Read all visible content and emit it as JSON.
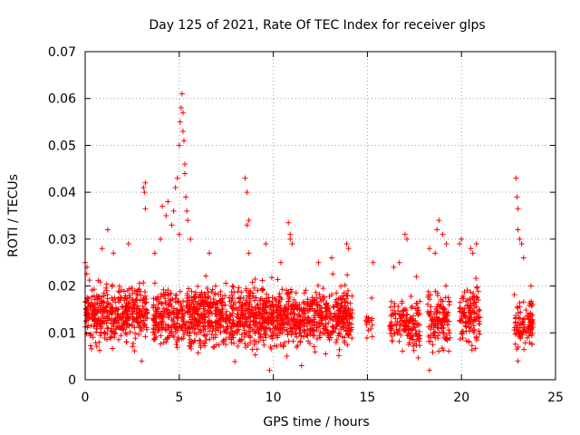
{
  "chart_data": {
    "type": "scatter",
    "title": "Day 125 of 2021, Rate Of TEC Index for receiver glps",
    "xlabel": "GPS time / hours",
    "ylabel": "ROTI / TECUs",
    "xlim": [
      0,
      25
    ],
    "ylim": [
      0,
      0.07
    ],
    "xticks": [
      "0",
      "5",
      "10",
      "15",
      "20",
      "25"
    ],
    "yticks": [
      "0",
      "0.01",
      "0.02",
      "0.03",
      "0.04",
      "0.05",
      "0.06",
      "0.07"
    ],
    "grid": true,
    "marker": "plus",
    "color": "#ff0000",
    "series": [
      {
        "segments": [
          {
            "x": [
              0.0,
              3.3
            ],
            "center": 0.014,
            "spread": 0.007,
            "density": 130
          },
          {
            "x": [
              3.6,
              14.2
            ],
            "center": 0.0135,
            "spread": 0.0075,
            "density": 130
          },
          {
            "x": [
              14.9,
              15.3
            ],
            "center": 0.0125,
            "spread": 0.006,
            "density": 40
          },
          {
            "x": [
              16.2,
              17.8
            ],
            "center": 0.012,
            "spread": 0.006,
            "density": 90
          },
          {
            "x": [
              18.2,
              19.4
            ],
            "center": 0.0125,
            "spread": 0.007,
            "density": 110
          },
          {
            "x": [
              19.9,
              21.0
            ],
            "center": 0.0135,
            "spread": 0.007,
            "density": 110
          },
          {
            "x": [
              22.8,
              23.8
            ],
            "center": 0.012,
            "spread": 0.006,
            "density": 110
          }
        ],
        "spikes": [
          {
            "x": 0.0,
            "y": 0.025
          },
          {
            "x": 0.1,
            "y": 0.024
          },
          {
            "x": 0.9,
            "y": 0.028
          },
          {
            "x": 1.2,
            "y": 0.032
          },
          {
            "x": 1.5,
            "y": 0.027
          },
          {
            "x": 2.3,
            "y": 0.029
          },
          {
            "x": 3.1,
            "y": 0.041
          },
          {
            "x": 3.15,
            "y": 0.04
          },
          {
            "x": 3.2,
            "y": 0.042
          },
          {
            "x": 3.2,
            "y": 0.0365
          },
          {
            "x": 3.0,
            "y": 0.004
          },
          {
            "x": 3.7,
            "y": 0.027
          },
          {
            "x": 4.0,
            "y": 0.03
          },
          {
            "x": 4.1,
            "y": 0.037
          },
          {
            "x": 4.3,
            "y": 0.035
          },
          {
            "x": 4.4,
            "y": 0.038
          },
          {
            "x": 4.6,
            "y": 0.033
          },
          {
            "x": 4.7,
            "y": 0.036
          },
          {
            "x": 4.8,
            "y": 0.041
          },
          {
            "x": 4.9,
            "y": 0.043
          },
          {
            "x": 5.0,
            "y": 0.05
          },
          {
            "x": 5.05,
            "y": 0.055
          },
          {
            "x": 5.1,
            "y": 0.058
          },
          {
            "x": 5.15,
            "y": 0.061
          },
          {
            "x": 5.2,
            "y": 0.057
          },
          {
            "x": 5.2,
            "y": 0.053
          },
          {
            "x": 5.25,
            "y": 0.051
          },
          {
            "x": 5.3,
            "y": 0.046
          },
          {
            "x": 5.3,
            "y": 0.044
          },
          {
            "x": 5.35,
            "y": 0.039
          },
          {
            "x": 5.4,
            "y": 0.036
          },
          {
            "x": 5.45,
            "y": 0.034
          },
          {
            "x": 5.0,
            "y": 0.031
          },
          {
            "x": 5.6,
            "y": 0.03
          },
          {
            "x": 6.6,
            "y": 0.027
          },
          {
            "x": 8.5,
            "y": 0.043
          },
          {
            "x": 8.6,
            "y": 0.04
          },
          {
            "x": 8.7,
            "y": 0.034
          },
          {
            "x": 8.6,
            "y": 0.033
          },
          {
            "x": 8.7,
            "y": 0.027
          },
          {
            "x": 9.6,
            "y": 0.029
          },
          {
            "x": 10.4,
            "y": 0.025
          },
          {
            "x": 10.8,
            "y": 0.0335
          },
          {
            "x": 10.9,
            "y": 0.031
          },
          {
            "x": 10.9,
            "y": 0.03
          },
          {
            "x": 11.0,
            "y": 0.029
          },
          {
            "x": 12.4,
            "y": 0.025
          },
          {
            "x": 13.1,
            "y": 0.026
          },
          {
            "x": 13.9,
            "y": 0.029
          },
          {
            "x": 14.0,
            "y": 0.028
          },
          {
            "x": 9.8,
            "y": 0.002
          },
          {
            "x": 11.5,
            "y": 0.003
          },
          {
            "x": 15.3,
            "y": 0.025
          },
          {
            "x": 16.4,
            "y": 0.024
          },
          {
            "x": 16.7,
            "y": 0.025
          },
          {
            "x": 17.0,
            "y": 0.031
          },
          {
            "x": 17.1,
            "y": 0.03
          },
          {
            "x": 17.6,
            "y": 0.022
          },
          {
            "x": 18.3,
            "y": 0.028
          },
          {
            "x": 18.6,
            "y": 0.027
          },
          {
            "x": 18.7,
            "y": 0.032
          },
          {
            "x": 18.8,
            "y": 0.034
          },
          {
            "x": 19.0,
            "y": 0.031
          },
          {
            "x": 19.2,
            "y": 0.029
          },
          {
            "x": 18.3,
            "y": 0.002
          },
          {
            "x": 19.9,
            "y": 0.029
          },
          {
            "x": 20.0,
            "y": 0.03
          },
          {
            "x": 20.5,
            "y": 0.028
          },
          {
            "x": 20.6,
            "y": 0.027
          },
          {
            "x": 20.8,
            "y": 0.029
          },
          {
            "x": 22.9,
            "y": 0.043
          },
          {
            "x": 22.95,
            "y": 0.039
          },
          {
            "x": 23.0,
            "y": 0.0365
          },
          {
            "x": 23.0,
            "y": 0.032
          },
          {
            "x": 23.1,
            "y": 0.03
          },
          {
            "x": 23.2,
            "y": 0.029
          },
          {
            "x": 23.3,
            "y": 0.026
          },
          {
            "x": 23.0,
            "y": 0.004
          },
          {
            "x": 23.7,
            "y": 0.02
          }
        ]
      }
    ]
  }
}
